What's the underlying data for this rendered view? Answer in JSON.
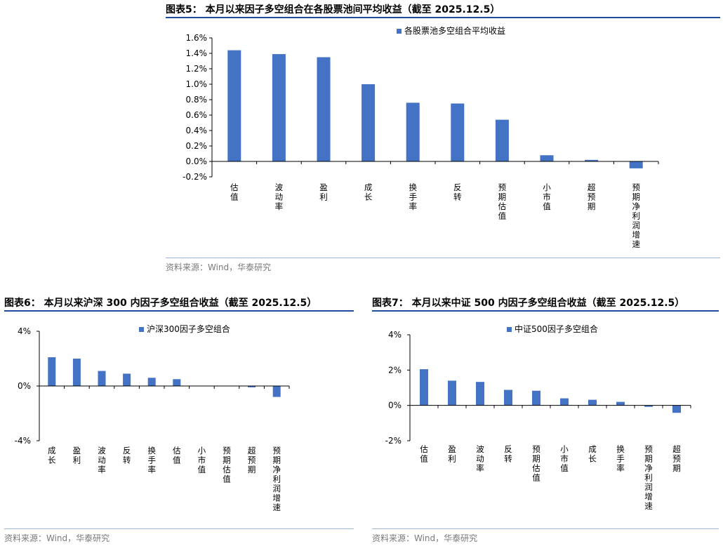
{
  "source": "资料来源：Wind，华泰研究",
  "colors": {
    "bar": "#4472c4",
    "rule": "#1f4e9c"
  },
  "chart_data": [
    {
      "id": "fig5",
      "type": "bar",
      "title": "图表5：  本月以来因子多空组合在各股票池间平均收益（截至 2025.12.5）",
      "legend": "各股票池多空组合平均收益",
      "categories": [
        "估值",
        "波动率",
        "盈利",
        "成长",
        "换手率",
        "反转",
        "预期估值",
        "小市值",
        "超预期",
        "预期净利润增速"
      ],
      "values": [
        1.44,
        1.39,
        1.35,
        1.0,
        0.76,
        0.75,
        0.54,
        0.08,
        0.02,
        -0.09
      ],
      "unit": "%",
      "ylim": [
        -0.2,
        1.6
      ],
      "yticks": [
        -0.2,
        0.0,
        0.2,
        0.4,
        0.6,
        0.8,
        1.0,
        1.2,
        1.4,
        1.6
      ],
      "ytick_labels": [
        "-0.2%",
        "0.0%",
        "0.2%",
        "0.4%",
        "0.6%",
        "0.8%",
        "1.0%",
        "1.2%",
        "1.4%",
        "1.6%"
      ],
      "legend_position": "top-right",
      "grid": false
    },
    {
      "id": "fig6",
      "type": "bar",
      "title": "图表6：  本月以来沪深 300 内因子多空组合收益（截至 2025.12.5）",
      "legend": "沪深300因子多空组合",
      "categories": [
        "成长",
        "盈利",
        "波动率",
        "反转",
        "换手率",
        "估值",
        "小市值",
        "预期估值",
        "超预期",
        "预期净利润增速"
      ],
      "values": [
        2.1,
        2.0,
        1.1,
        0.9,
        0.6,
        0.5,
        0.0,
        0.0,
        -0.1,
        -0.8
      ],
      "unit": "%",
      "ylim": [
        -4,
        4
      ],
      "yticks": [
        -4,
        0,
        4
      ],
      "ytick_labels": [
        "-4%",
        "0%",
        "4%"
      ],
      "legend_position": "top-right",
      "grid": false
    },
    {
      "id": "fig7",
      "type": "bar",
      "title": "图表7：  本月以来中证 500 内因子多空组合收益（截至 2025.12.5）",
      "legend": "中证500因子多空组合",
      "categories": [
        "估值",
        "盈利",
        "波动率",
        "反转",
        "预期估值",
        "小市值",
        "成长",
        "换手率",
        "预期净利润增速",
        "超预期"
      ],
      "values": [
        2.05,
        1.4,
        1.33,
        0.88,
        0.83,
        0.4,
        0.32,
        0.2,
        -0.08,
        -0.42
      ],
      "unit": "%",
      "ylim": [
        -2,
        4
      ],
      "yticks": [
        -2,
        0,
        2,
        4
      ],
      "ytick_labels": [
        "-2%",
        "0%",
        "2%",
        "4%"
      ],
      "legend_position": "top-right",
      "grid": false
    }
  ]
}
